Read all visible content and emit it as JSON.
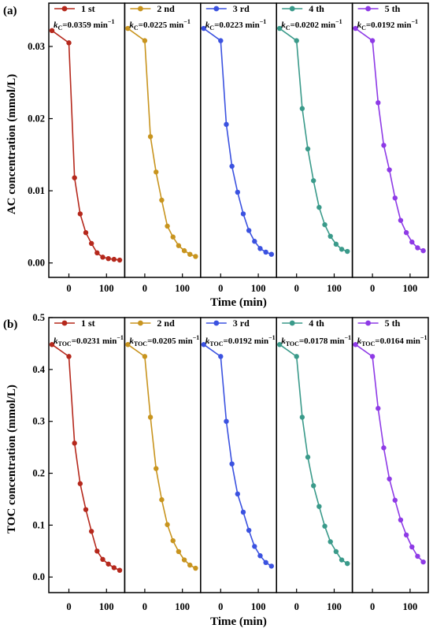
{
  "figure": {
    "panels": [
      {
        "label": "(a)",
        "ylabel": "AC concentration (mmol/L)",
        "xlabel": "Time (min)",
        "k_symbol": "k",
        "k_sub": "C",
        "yticks": [
          0.0,
          0.01,
          0.02,
          0.03
        ],
        "ytick_labels": [
          "0.00",
          "0.01",
          "0.02",
          "0.03"
        ],
        "ylim": [
          -0.002,
          0.036
        ],
        "xlim": [
          -45,
          140
        ],
        "xticks": [
          0,
          100
        ],
        "xtick_labels": [
          "0",
          "100"
        ],
        "runs": [
          {
            "name": "1 st",
            "color": "#B5281C",
            "k": "=0.0359 min",
            "x": [
              -45,
              0,
              15,
              30,
              45,
              60,
              75,
              90,
              105,
              120,
              135
            ],
            "y": [
              0.0322,
              0.0305,
              0.0118,
              0.0068,
              0.0042,
              0.0027,
              0.0014,
              0.0008,
              0.0006,
              0.0005,
              0.0004
            ]
          },
          {
            "name": "2 nd",
            "color": "#C8941E",
            "k": "=0.0225 min",
            "x": [
              -45,
              0,
              15,
              30,
              45,
              60,
              75,
              90,
              105,
              120,
              135
            ],
            "y": [
              0.0325,
              0.0308,
              0.0175,
              0.0126,
              0.0087,
              0.0051,
              0.0036,
              0.0024,
              0.0017,
              0.0012,
              0.0009
            ]
          },
          {
            "name": "3 rd",
            "color": "#3B52E0",
            "k": "=0.0223 min",
            "x": [
              -45,
              0,
              15,
              30,
              45,
              60,
              75,
              90,
              105,
              120,
              135
            ],
            "y": [
              0.0325,
              0.0308,
              0.0192,
              0.0134,
              0.0098,
              0.0068,
              0.0045,
              0.003,
              0.002,
              0.0015,
              0.0012
            ]
          },
          {
            "name": "4 th",
            "color": "#3A9A8A",
            "k": "=0.0202 min",
            "x": [
              -45,
              0,
              15,
              30,
              45,
              60,
              75,
              90,
              105,
              120,
              135
            ],
            "y": [
              0.0325,
              0.0308,
              0.0214,
              0.0158,
              0.0114,
              0.0077,
              0.0053,
              0.0037,
              0.0026,
              0.0019,
              0.0016
            ]
          },
          {
            "name": "5 th",
            "color": "#8E3AE6",
            "k": "=0.0192 min",
            "x": [
              -45,
              0,
              15,
              30,
              45,
              60,
              75,
              90,
              105,
              120,
              135
            ],
            "y": [
              0.0325,
              0.0308,
              0.0222,
              0.0163,
              0.0129,
              0.009,
              0.0059,
              0.0042,
              0.0029,
              0.0021,
              0.0017
            ]
          }
        ]
      },
      {
        "label": "(b)",
        "ylabel": "TOC concentration (mmol/L)",
        "xlabel": "Time (min)",
        "k_symbol": "k",
        "k_sub": "TOC",
        "yticks": [
          0.0,
          0.1,
          0.2,
          0.3,
          0.4,
          0.5
        ],
        "ytick_labels": [
          "0.0",
          "0.1",
          "0.2",
          "0.3",
          "0.4",
          "0.5"
        ],
        "ylim": [
          -0.03,
          0.5
        ],
        "xlim": [
          -45,
          140
        ],
        "xticks": [
          0,
          100
        ],
        "xtick_labels": [
          "0",
          "100"
        ],
        "runs": [
          {
            "name": "1 st",
            "color": "#B5281C",
            "k": "=0.0231 min",
            "x": [
              -45,
              0,
              15,
              30,
              45,
              60,
              75,
              90,
              105,
              120,
              135
            ],
            "y": [
              0.448,
              0.425,
              0.258,
              0.18,
              0.13,
              0.088,
              0.05,
              0.034,
              0.025,
              0.018,
              0.013
            ]
          },
          {
            "name": "2 nd",
            "color": "#C8941E",
            "k": "=0.0205 min",
            "x": [
              -45,
              0,
              15,
              30,
              45,
              60,
              75,
              90,
              105,
              120,
              135
            ],
            "y": [
              0.448,
              0.425,
              0.308,
              0.209,
              0.149,
              0.101,
              0.07,
              0.049,
              0.033,
              0.023,
              0.017
            ]
          },
          {
            "name": "3 rd",
            "color": "#3B52E0",
            "k": "=0.0192 min",
            "x": [
              -45,
              0,
              15,
              30,
              45,
              60,
              75,
              90,
              105,
              120,
              135
            ],
            "y": [
              0.448,
              0.425,
              0.3,
              0.218,
              0.16,
              0.125,
              0.09,
              0.059,
              0.041,
              0.028,
              0.021
            ]
          },
          {
            "name": "4 th",
            "color": "#3A9A8A",
            "k": "=0.0178 min",
            "x": [
              -45,
              0,
              15,
              30,
              45,
              60,
              75,
              90,
              105,
              120,
              135
            ],
            "y": [
              0.448,
              0.425,
              0.308,
              0.231,
              0.176,
              0.136,
              0.098,
              0.068,
              0.049,
              0.033,
              0.026
            ]
          },
          {
            "name": "5 th",
            "color": "#8E3AE6",
            "k": "=0.0164 min",
            "x": [
              -45,
              0,
              15,
              30,
              45,
              60,
              75,
              90,
              105,
              120,
              135
            ],
            "y": [
              0.448,
              0.425,
              0.325,
              0.249,
              0.189,
              0.148,
              0.11,
              0.081,
              0.058,
              0.04,
              0.029
            ]
          }
        ]
      }
    ]
  },
  "chart_data": [
    {
      "type": "line",
      "title": "(a)",
      "xlabel": "Time (min)",
      "ylabel": "AC concentration (mmol/L)",
      "xlim": [
        -45,
        140
      ],
      "ylim": [
        -0.002,
        0.036
      ],
      "x": [
        -45,
        0,
        15,
        30,
        45,
        60,
        75,
        90,
        105,
        120,
        135
      ],
      "series": [
        {
          "name": "1 st",
          "values": [
            0.0322,
            0.0305,
            0.0118,
            0.0068,
            0.0042,
            0.0027,
            0.0014,
            0.0008,
            0.0006,
            0.0005,
            0.0004
          ]
        },
        {
          "name": "2 nd",
          "values": [
            0.0325,
            0.0308,
            0.0175,
            0.0126,
            0.0087,
            0.0051,
            0.0036,
            0.0024,
            0.0017,
            0.0012,
            0.0009
          ]
        },
        {
          "name": "3 rd",
          "values": [
            0.0325,
            0.0308,
            0.0192,
            0.0134,
            0.0098,
            0.0068,
            0.0045,
            0.003,
            0.002,
            0.0015,
            0.0012
          ]
        },
        {
          "name": "4 th",
          "values": [
            0.0325,
            0.0308,
            0.0214,
            0.0158,
            0.0114,
            0.0077,
            0.0053,
            0.0037,
            0.0026,
            0.0019,
            0.0016
          ]
        },
        {
          "name": "5 th",
          "values": [
            0.0325,
            0.0308,
            0.0222,
            0.0163,
            0.0129,
            0.009,
            0.0059,
            0.0042,
            0.0029,
            0.0021,
            0.0017
          ]
        }
      ],
      "annotations": [
        "kC=0.0359 min-1",
        "kC=0.0225 min-1",
        "kC=0.0223 min-1",
        "kC=0.0202 min-1",
        "kC=0.0192 min-1"
      ],
      "legend": "top of each subpanel"
    },
    {
      "type": "line",
      "title": "(b)",
      "xlabel": "Time (min)",
      "ylabel": "TOC concentration (mmol/L)",
      "xlim": [
        -45,
        140
      ],
      "ylim": [
        -0.03,
        0.5
      ],
      "x": [
        -45,
        0,
        15,
        30,
        45,
        60,
        75,
        90,
        105,
        120,
        135
      ],
      "series": [
        {
          "name": "1 st",
          "values": [
            0.448,
            0.425,
            0.258,
            0.18,
            0.13,
            0.088,
            0.05,
            0.034,
            0.025,
            0.018,
            0.013
          ]
        },
        {
          "name": "2 nd",
          "values": [
            0.448,
            0.425,
            0.308,
            0.209,
            0.149,
            0.101,
            0.07,
            0.049,
            0.033,
            0.023,
            0.017
          ]
        },
        {
          "name": "3 rd",
          "values": [
            0.448,
            0.425,
            0.3,
            0.218,
            0.16,
            0.125,
            0.09,
            0.059,
            0.041,
            0.028,
            0.021
          ]
        },
        {
          "name": "4 th",
          "values": [
            0.448,
            0.425,
            0.308,
            0.231,
            0.176,
            0.136,
            0.098,
            0.068,
            0.049,
            0.033,
            0.026
          ]
        },
        {
          "name": "5 th",
          "values": [
            0.448,
            0.425,
            0.325,
            0.249,
            0.189,
            0.148,
            0.11,
            0.081,
            0.058,
            0.04,
            0.029
          ]
        }
      ],
      "annotations": [
        "kTOC=0.0231 min-1",
        "kTOC=0.0205 min-1",
        "kTOC=0.0192 min-1",
        "kTOC=0.0178 min-1",
        "kTOC=0.0164 min-1"
      ],
      "legend": "top of each subpanel"
    }
  ]
}
